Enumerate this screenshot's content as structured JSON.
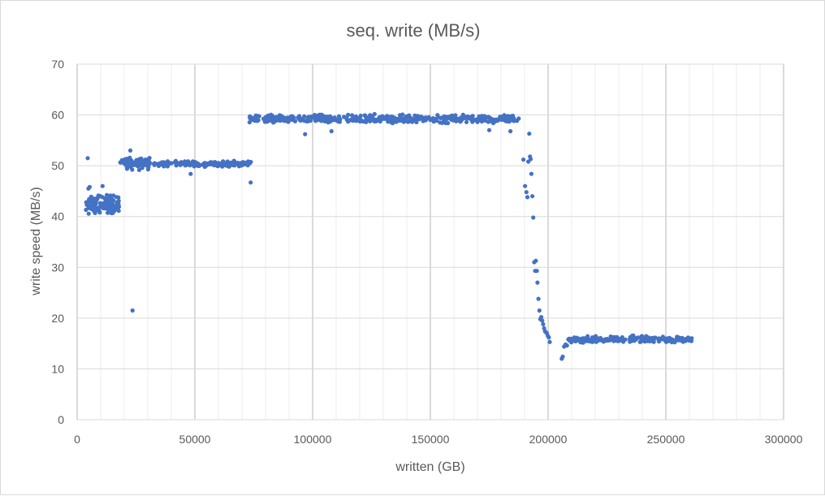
{
  "chart_data": {
    "type": "scatter",
    "title": "seq. write (MB/s)",
    "xlabel": "written (GB)",
    "ylabel": "write speed (MB/s)",
    "xlim": [
      0,
      300000
    ],
    "ylim": [
      0,
      70
    ],
    "x_major_ticks": [
      0,
      50000,
      100000,
      150000,
      200000,
      250000,
      300000
    ],
    "x_tick_labels": [
      "0",
      "50000",
      "100000",
      "150000",
      "200000",
      "250000",
      "300000"
    ],
    "y_major_ticks": [
      0,
      10,
      20,
      30,
      40,
      50,
      60,
      70
    ],
    "y_tick_labels": [
      "0",
      "10",
      "20",
      "30",
      "40",
      "50",
      "60",
      "70"
    ],
    "gridlines": true,
    "legend": "none",
    "marker_color": "#4472c4",
    "outliers": [
      [
        4500,
        51.5
      ],
      [
        4800,
        45.5
      ],
      [
        5300,
        45.8
      ],
      [
        10800,
        46.0
      ],
      [
        9800,
        44.0
      ],
      [
        12000,
        43.6
      ],
      [
        22600,
        53.0
      ],
      [
        23500,
        21.5
      ],
      [
        48200,
        48.4
      ],
      [
        73700,
        46.7
      ],
      [
        96800,
        56.2
      ],
      [
        108000,
        56.8
      ],
      [
        175000,
        57.0
      ],
      [
        184000,
        56.8
      ],
      [
        189500,
        51.2
      ],
      [
        190200,
        46.0
      ],
      [
        190800,
        44.8
      ],
      [
        191200,
        43.8
      ],
      [
        191600,
        50.8
      ],
      [
        192000,
        56.3
      ],
      [
        192300,
        51.8
      ],
      [
        192600,
        51.3
      ],
      [
        192900,
        48.4
      ],
      [
        193300,
        44.0
      ],
      [
        193700,
        39.8
      ],
      [
        194100,
        31.0
      ],
      [
        194500,
        29.3
      ],
      [
        194800,
        31.3
      ],
      [
        195200,
        29.3
      ],
      [
        195500,
        27.0
      ],
      [
        195900,
        23.8
      ],
      [
        196300,
        21.5
      ],
      [
        196700,
        19.8
      ],
      [
        197100,
        20.2
      ],
      [
        197500,
        19.5
      ],
      [
        197900,
        18.8
      ],
      [
        198300,
        18.0
      ],
      [
        198700,
        17.4
      ],
      [
        199100,
        17.2
      ],
      [
        199500,
        17.0
      ],
      [
        199900,
        16.5
      ],
      [
        200300,
        16.2
      ],
      [
        200700,
        15.3
      ],
      [
        205800,
        12.0
      ],
      [
        206200,
        12.4
      ],
      [
        206800,
        14.4
      ],
      [
        207400,
        14.8
      ],
      [
        208000,
        14.6
      ],
      [
        208600,
        15.8
      ]
    ],
    "clusters": [
      {
        "x": [
          3500,
          18000
        ],
        "y": 42.0,
        "spread": 1.2,
        "count": 110
      },
      {
        "x": [
          5000,
          18000
        ],
        "y": 43.8,
        "spread": 0.6,
        "count": 22
      },
      {
        "x": [
          17500,
          23000
        ],
        "y": 50.6,
        "spread": 0.5,
        "count": 20
      },
      {
        "x": [
          21000,
          31000
        ],
        "y": 50.5,
        "spread": 1.0,
        "count": 95
      },
      {
        "x": [
          31000,
          74000
        ],
        "y": 50.4,
        "spread": 0.45,
        "count": 160
      },
      {
        "x": [
          73000,
          188000
        ],
        "y": 59.2,
        "spread": 0.7,
        "count": 460
      },
      {
        "x": [
          208500,
          261000
        ],
        "y": 15.8,
        "spread": 0.55,
        "count": 210
      }
    ]
  }
}
